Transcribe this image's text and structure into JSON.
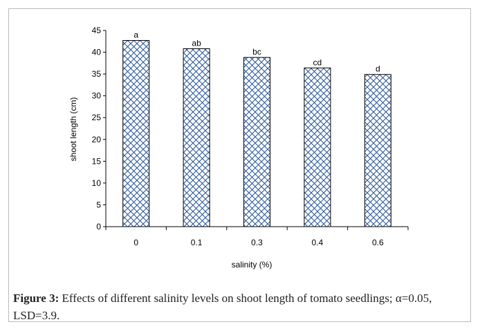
{
  "chart_data": {
    "type": "bar",
    "categories": [
      "0",
      "0.1",
      "0.3",
      "0.4",
      "0.6"
    ],
    "values": [
      42.7,
      40.8,
      38.8,
      36.4,
      34.9
    ],
    "letters": [
      "a",
      "ab",
      "bc",
      "cd",
      "d"
    ],
    "xlabel": "salinity (%)",
    "ylabel": "shoot length (cm)",
    "ylim": [
      0,
      45
    ],
    "yticks": [
      "0",
      "5",
      "10",
      "15",
      "20",
      "25",
      "30",
      "35",
      "40",
      "45"
    ],
    "grid": false,
    "bar_fill": "#8fa6c9",
    "bar_stroke": "#000000"
  },
  "caption": {
    "label": "Figure 3:",
    "text": " Effects of different salinity levels on shoot length of tomato seedlings; α=0.05, LSD=3.9."
  }
}
